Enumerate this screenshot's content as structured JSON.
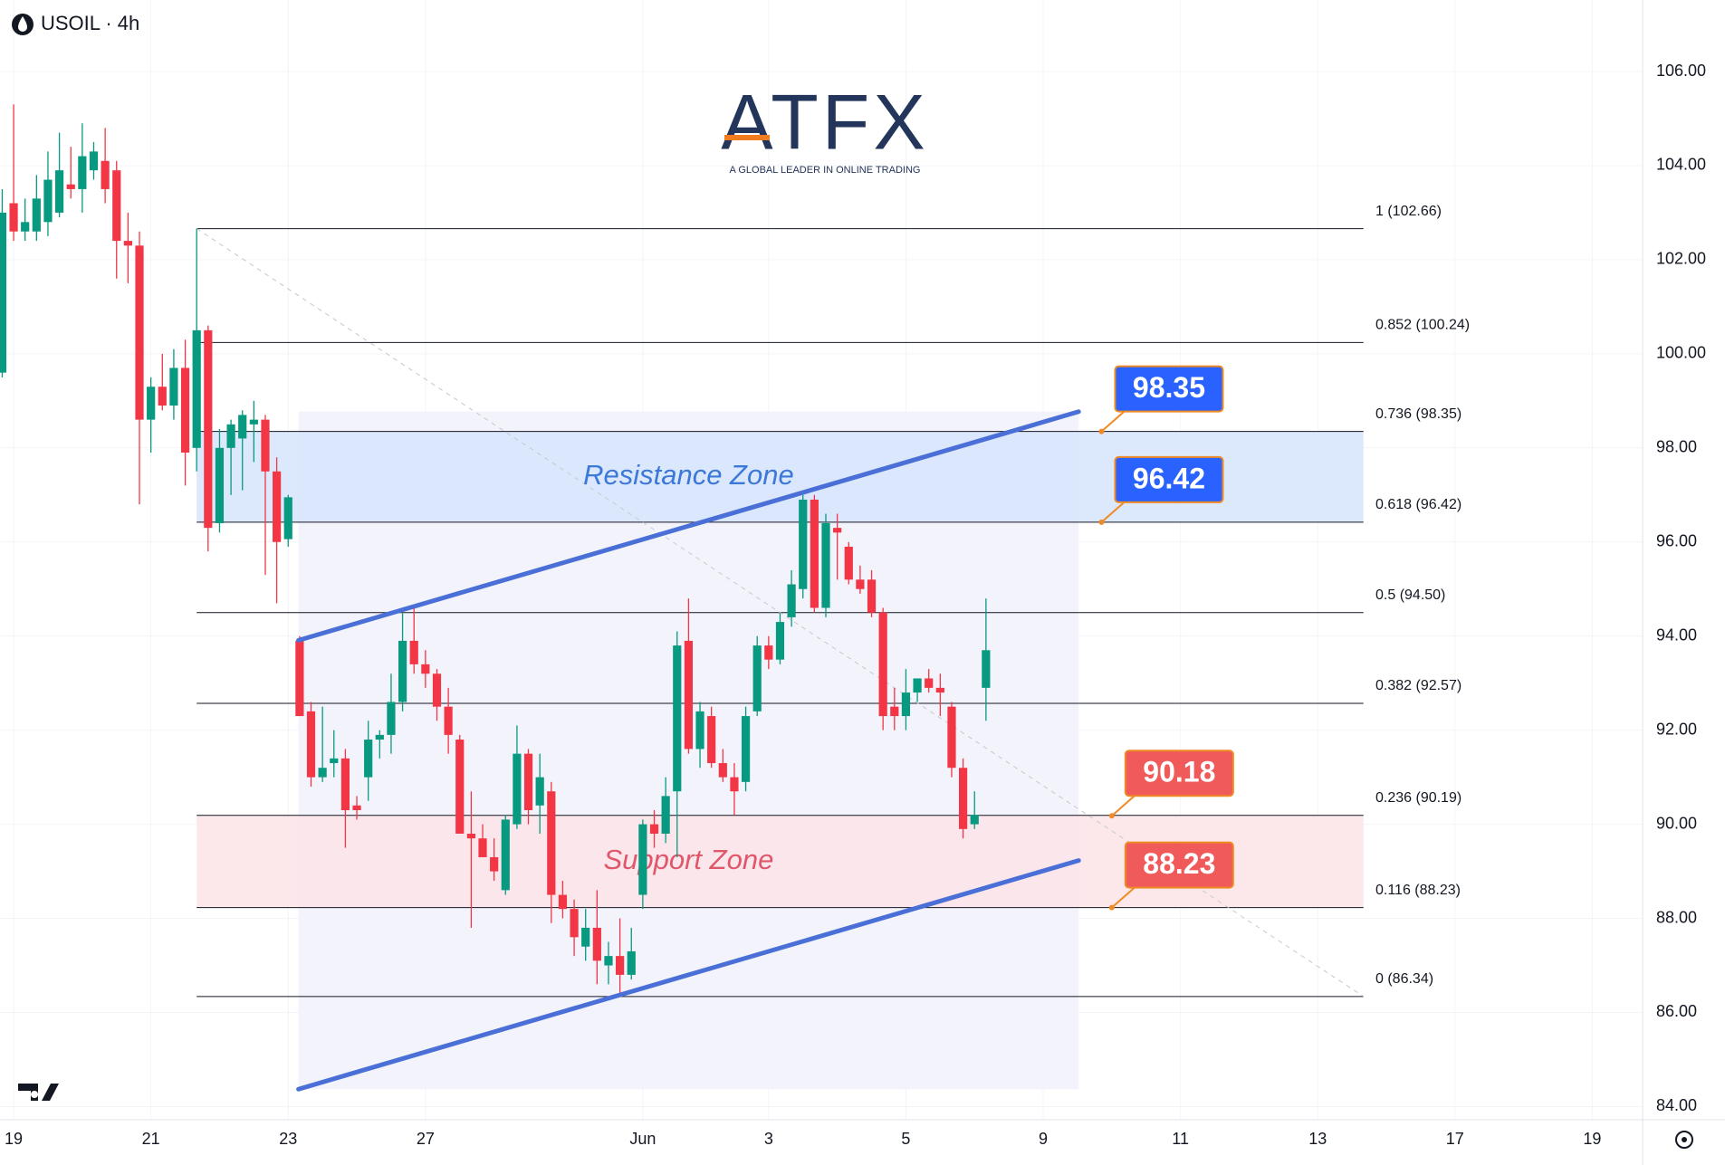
{
  "header": {
    "symbol": "USOIL · 4h"
  },
  "logo": {
    "name": "ATFX",
    "tagline": "A GLOBAL LEADER IN ONLINE TRADING"
  },
  "chart_data": {
    "type": "candlestick",
    "up_color": "#089981",
    "down_color": "#f23645",
    "xlim": [
      -0.192,
      143.4
    ],
    "ylim": [
      83.72,
      107.52
    ],
    "xticks": [
      {
        "value": 1,
        "label": "19"
      },
      {
        "value": 13,
        "label": "21"
      },
      {
        "value": 25,
        "label": "23"
      },
      {
        "value": 37,
        "label": "27"
      },
      {
        "value": 56,
        "label": "Jun"
      },
      {
        "value": 67,
        "label": "3"
      },
      {
        "value": 79,
        "label": "5"
      },
      {
        "value": 91,
        "label": "9"
      },
      {
        "value": 103,
        "label": "11"
      },
      {
        "value": 115,
        "label": "13"
      },
      {
        "value": 127,
        "label": "17"
      },
      {
        "value": 139,
        "label": "19"
      }
    ],
    "yticks": [
      {
        "value": 84,
        "label": "84.00"
      },
      {
        "value": 86,
        "label": "86.00"
      },
      {
        "value": 88,
        "label": "88.00"
      },
      {
        "value": 90,
        "label": "90.00"
      },
      {
        "value": 92,
        "label": "92.00"
      },
      {
        "value": 94,
        "label": "94.00"
      },
      {
        "value": 96,
        "label": "96.00"
      },
      {
        "value": 98,
        "label": "98.00"
      },
      {
        "value": 100,
        "label": "100.00"
      },
      {
        "value": 102,
        "label": "102.00"
      },
      {
        "value": 104,
        "label": "104.00"
      },
      {
        "value": 106,
        "label": "106.00"
      }
    ],
    "open": [
      99.6,
      103.2,
      102.6,
      102.6,
      102.8,
      103.0,
      103.6,
      103.5,
      103.9,
      104.1,
      103.9,
      102.4,
      102.3,
      98.6,
      99.3,
      98.9,
      99.7,
      98.0,
      100.5,
      96.4,
      98.0,
      98.2,
      98.5,
      98.6,
      97.5,
      96.06,
      93.9,
      92.4,
      91.0,
      91.3,
      91.4,
      90.4,
      91.0,
      91.8,
      91.9,
      92.6,
      93.9,
      93.4,
      93.2,
      92.5,
      91.8,
      89.8,
      89.7,
      89.3,
      88.6,
      90.0,
      91.5,
      90.4,
      90.7,
      88.5,
      88.2,
      87.4,
      87.8,
      87.0,
      87.2,
      86.8,
      88.5,
      90.0,
      89.8,
      90.7,
      93.9,
      91.6,
      92.3,
      91.3,
      91.0,
      90.9,
      92.4,
      93.8,
      93.5,
      94.4,
      95.0,
      96.9,
      94.6,
      96.3,
      95.9,
      95.2,
      95.2,
      94.5,
      92.5,
      92.3,
      92.8,
      93.1,
      92.9,
      92.5,
      91.2,
      90.0,
      92.9
    ],
    "high": [
      103.5,
      105.3,
      103.3,
      103.8,
      104.3,
      104.7,
      104.4,
      104.9,
      104.5,
      104.8,
      104.1,
      103.0,
      102.6,
      99.5,
      100.0,
      100.1,
      100.3,
      102.66,
      100.6,
      98.4,
      98.6,
      98.8,
      99.0,
      98.7,
      97.8,
      97.0,
      94.0,
      92.6,
      92.5,
      92.0,
      91.6,
      90.6,
      92.2,
      92.0,
      93.2,
      94.5,
      94.6,
      93.7,
      93.3,
      92.9,
      91.9,
      90.7,
      90.0,
      89.7,
      90.2,
      92.1,
      91.6,
      91.5,
      90.9,
      88.8,
      88.4,
      88.2,
      88.6,
      87.5,
      88.0,
      87.8,
      90.1,
      90.3,
      91.0,
      94.1,
      94.8,
      92.6,
      92.5,
      91.6,
      91.3,
      92.5,
      94.0,
      94.0,
      94.5,
      95.4,
      97.0,
      97.0,
      96.6,
      96.6,
      96.0,
      95.5,
      95.4,
      94.6,
      92.9,
      93.3,
      93.1,
      93.3,
      93.2,
      92.6,
      91.4,
      90.7,
      94.8
    ],
    "low": [
      99.5,
      102.4,
      102.4,
      102.4,
      102.5,
      102.9,
      103.3,
      103.0,
      103.7,
      103.2,
      101.6,
      101.5,
      96.8,
      97.9,
      98.8,
      98.6,
      97.2,
      97.5,
      95.8,
      96.2,
      97.0,
      97.1,
      97.7,
      95.3,
      94.7,
      95.9,
      92.3,
      90.8,
      90.9,
      91.0,
      89.5,
      90.1,
      90.5,
      91.4,
      91.5,
      92.4,
      93.2,
      92.9,
      92.2,
      91.5,
      89.8,
      87.8,
      89.3,
      88.8,
      88.5,
      89.9,
      90.0,
      89.8,
      87.9,
      88.0,
      87.2,
      87.1,
      86.6,
      86.6,
      86.34,
      86.7,
      88.2,
      89.5,
      89.6,
      89.3,
      91.5,
      91.2,
      91.2,
      90.9,
      90.2,
      90.7,
      92.3,
      93.3,
      93.4,
      94.2,
      94.8,
      94.5,
      94.4,
      95.2,
      95.1,
      94.9,
      94.4,
      92.0,
      92.0,
      92.0,
      92.6,
      92.8,
      92.3,
      91.0,
      89.7,
      89.9,
      92.2
    ],
    "close": [
      103.0,
      102.6,
      102.8,
      103.3,
      103.7,
      103.9,
      103.5,
      104.2,
      104.3,
      103.5,
      102.4,
      102.3,
      98.6,
      99.3,
      98.9,
      99.7,
      97.9,
      100.5,
      96.3,
      98.0,
      98.5,
      98.7,
      98.6,
      97.5,
      96.0,
      96.95,
      92.3,
      91.0,
      91.2,
      91.4,
      90.3,
      90.3,
      91.8,
      91.9,
      92.6,
      93.9,
      93.4,
      93.2,
      92.5,
      91.9,
      89.8,
      89.7,
      89.3,
      89.0,
      90.1,
      91.5,
      90.3,
      91.0,
      88.5,
      88.2,
      87.6,
      87.8,
      87.1,
      87.2,
      86.8,
      87.3,
      90.0,
      89.8,
      90.6,
      93.8,
      91.6,
      92.4,
      91.3,
      91.0,
      90.7,
      92.3,
      93.8,
      93.5,
      94.3,
      95.1,
      96.9,
      94.6,
      96.4,
      96.2,
      95.2,
      95.0,
      94.5,
      92.3,
      92.3,
      92.8,
      93.1,
      92.9,
      92.8,
      91.2,
      89.9,
      90.2,
      93.7
    ],
    "fib_levels": [
      {
        "label": "1 (102.66)",
        "value": 102.66
      },
      {
        "label": "0.852 (100.24)",
        "value": 100.24
      },
      {
        "label": "0.736 (98.35)",
        "value": 98.35
      },
      {
        "label": "0.618 (96.42)",
        "value": 96.42
      },
      {
        "label": "0.5 (94.50)",
        "value": 94.5
      },
      {
        "label": "0.382 (92.57)",
        "value": 92.57
      },
      {
        "label": "0.236 (90.19)",
        "value": 90.19
      },
      {
        "label": "0.116 (88.23)",
        "value": 88.23
      },
      {
        "label": "0 (86.34)",
        "value": 86.34
      }
    ],
    "zones": [
      {
        "label": "Resistance Zone",
        "from": 96.42,
        "to": 98.35,
        "fill": "#d6e4fb",
        "color": "#3b78d8"
      },
      {
        "label": "Support Zone",
        "from": 88.23,
        "to": 90.19,
        "fill": "#fbe4e7",
        "color": "#e0566a"
      }
    ],
    "channel": {
      "color": "#4a6fd6",
      "upper": [
        93.91,
        98.77
      ],
      "lower": [
        84.37,
        89.23
      ]
    },
    "price_tags": [
      {
        "value": 98.35,
        "color": "#2962ff"
      },
      {
        "value": 96.42,
        "color": "#2962ff"
      },
      {
        "value": 90.18,
        "color": "#f05a5a"
      },
      {
        "value": 88.23,
        "color": "#f05a5a"
      }
    ]
  }
}
